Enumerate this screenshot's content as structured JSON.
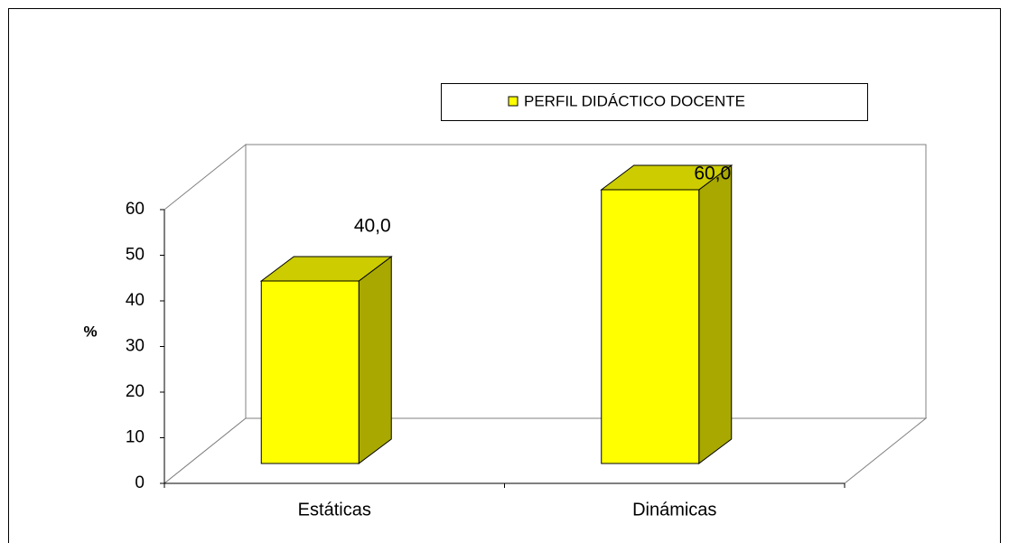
{
  "chart_data": {
    "type": "bar3d",
    "categories": [
      "Estáticas",
      "Dinámicas"
    ],
    "series": [
      {
        "name": "PERFIL DIDÁCTICO DOCENTE",
        "color": "#ffff00",
        "values": [
          40,
          60
        ],
        "value_labels": [
          "40,0",
          "60,0"
        ]
      }
    ],
    "ylabel": "%",
    "ylim": [
      0,
      60
    ],
    "yticks": [
      0,
      10,
      20,
      30,
      40,
      50,
      60
    ],
    "grid": false,
    "legend": "top"
  }
}
